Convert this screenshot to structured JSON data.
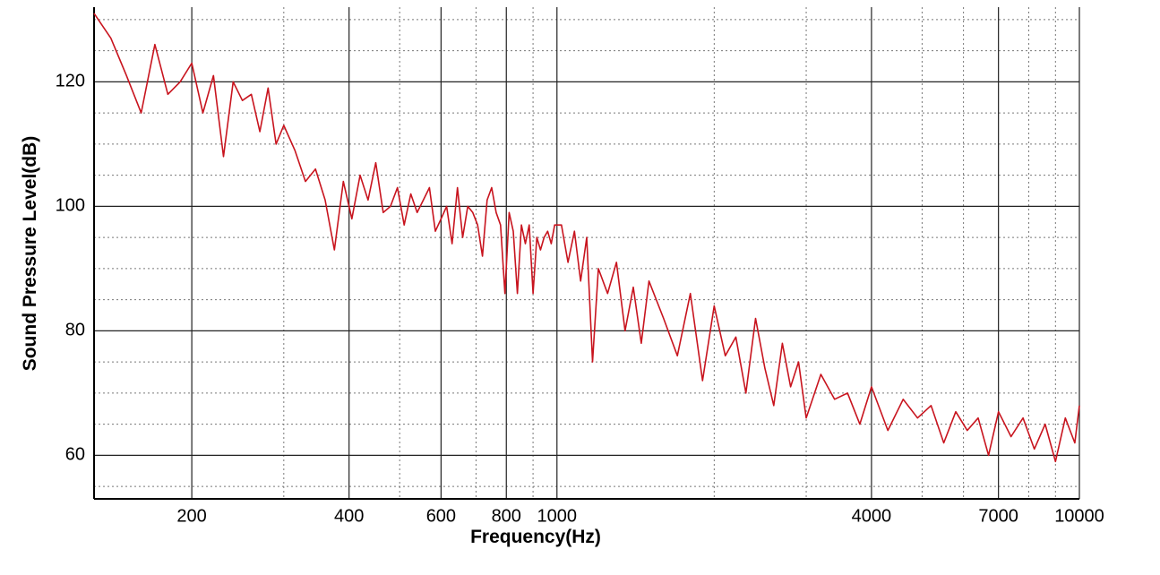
{
  "chart_data": {
    "type": "line",
    "xlabel": "Frequency(Hz)",
    "ylabel": "Sound Pressure Level(dB)",
    "xscale": "log",
    "color": "#c8141e",
    "grid": true,
    "xlim": [
      130,
      10000
    ],
    "ylim": [
      53,
      132
    ],
    "xticks": [
      200,
      400,
      600,
      800,
      1000,
      4000,
      7000,
      10000
    ],
    "xticks_minor": [
      300,
      500,
      700,
      900,
      2000,
      3000,
      5000,
      6000,
      8000,
      9000
    ],
    "yticks": [
      60,
      80,
      100,
      120
    ],
    "yticks_minor": [
      55,
      65,
      70,
      75,
      85,
      90,
      95,
      105,
      110,
      115,
      125,
      130
    ],
    "x": [
      130,
      140,
      150,
      160,
      170,
      180,
      190,
      200,
      210,
      220,
      230,
      240,
      250,
      260,
      270,
      280,
      290,
      300,
      315,
      330,
      345,
      360,
      375,
      390,
      405,
      420,
      435,
      450,
      465,
      480,
      495,
      510,
      525,
      540,
      555,
      570,
      585,
      600,
      615,
      630,
      645,
      660,
      675,
      690,
      705,
      720,
      735,
      750,
      765,
      780,
      795,
      810,
      825,
      840,
      855,
      870,
      885,
      900,
      915,
      930,
      945,
      960,
      975,
      990,
      1020,
      1050,
      1080,
      1110,
      1140,
      1170,
      1200,
      1250,
      1300,
      1350,
      1400,
      1450,
      1500,
      1600,
      1700,
      1800,
      1900,
      2000,
      2100,
      2200,
      2300,
      2400,
      2500,
      2600,
      2700,
      2800,
      2900,
      3000,
      3200,
      3400,
      3600,
      3800,
      4000,
      4300,
      4600,
      4900,
      5200,
      5500,
      5800,
      6100,
      6400,
      6700,
      7000,
      7400,
      7800,
      8200,
      8600,
      9000,
      9400,
      9800,
      10000
    ],
    "values": [
      131,
      127,
      121,
      115,
      126,
      118,
      120,
      123,
      115,
      121,
      108,
      120,
      117,
      118,
      112,
      119,
      110,
      113,
      109,
      104,
      106,
      101,
      93,
      104,
      98,
      105,
      101,
      107,
      99,
      100,
      103,
      97,
      102,
      99,
      101,
      103,
      96,
      98,
      100,
      94,
      103,
      95,
      100,
      99,
      97,
      92,
      101,
      103,
      99,
      97,
      86,
      99,
      96,
      86,
      97,
      94,
      97,
      86,
      95,
      93,
      95,
      96,
      94,
      97,
      97,
      91,
      96,
      88,
      95,
      75,
      90,
      86,
      91,
      80,
      87,
      78,
      88,
      82,
      76,
      86,
      72,
      84,
      76,
      79,
      70,
      82,
      74,
      68,
      78,
      71,
      75,
      66,
      73,
      69,
      70,
      65,
      71,
      64,
      69,
      66,
      68,
      62,
      67,
      64,
      66,
      60,
      67,
      63,
      66,
      61,
      65,
      59,
      66,
      62,
      68
    ]
  }
}
